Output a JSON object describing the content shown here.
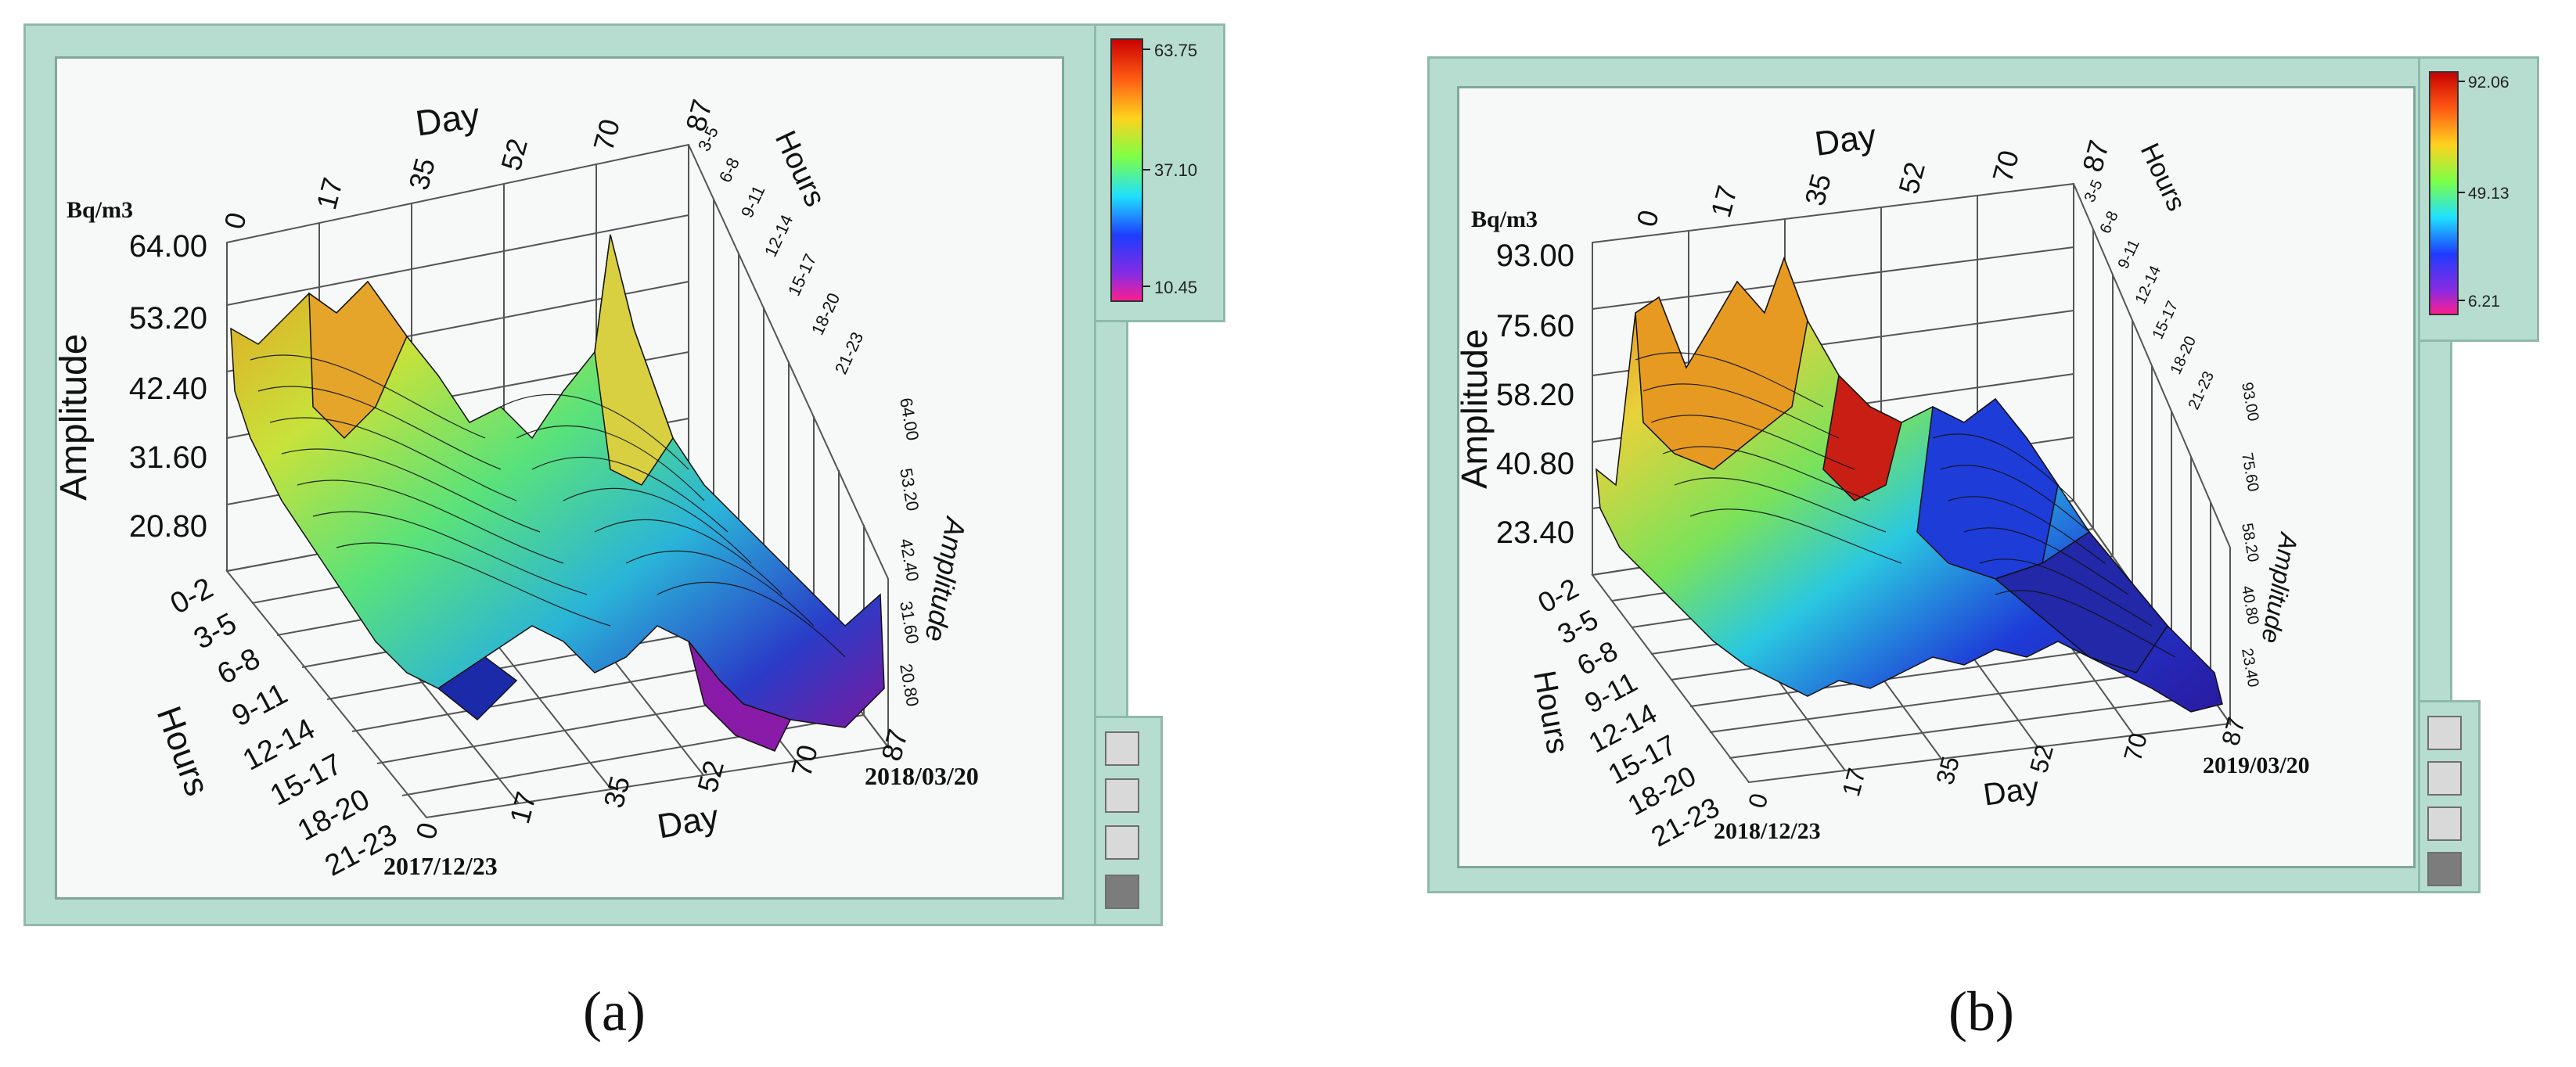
{
  "chart_data": [
    {
      "type": "surface3d",
      "panel_label": "(a)",
      "title": "",
      "unit_label": "Bq/m3",
      "zlabel": "Amplitude",
      "xlabel": "Day",
      "ylabel": "Hours",
      "x_ticks": [
        "0",
        "17",
        "35",
        "52",
        "70",
        "87"
      ],
      "hour_ticks": [
        "0-2",
        "3-5",
        "6-8",
        "9-11",
        "12-14",
        "15-17",
        "18-20",
        "21-23"
      ],
      "z_ticks": [
        "64.00",
        "53.20",
        "42.40",
        "31.60",
        "20.80"
      ],
      "zlim": [
        20.8,
        64.0
      ],
      "start_date": "2017/12/23",
      "end_date": "2018/03/20",
      "colorbar": {
        "max": "63.75",
        "mid": "37.10",
        "min": "10.45"
      },
      "colormap": [
        "#ff1e8c",
        "#8a2be2",
        "#1e3cff",
        "#1fe0ff",
        "#3cff64",
        "#e8ff2a",
        "#ff8c1e",
        "#c80000"
      ]
    },
    {
      "type": "surface3d",
      "panel_label": "(b)",
      "title": "",
      "unit_label": "Bq/m3",
      "zlabel": "Amplitude",
      "xlabel": "Day",
      "ylabel": "Hours",
      "x_ticks": [
        "0",
        "17",
        "35",
        "52",
        "70",
        "87"
      ],
      "hour_ticks": [
        "0-2",
        "3-5",
        "6-8",
        "9-11",
        "12-14",
        "15-17",
        "18-20",
        "21-23"
      ],
      "z_ticks": [
        "93.00",
        "75.60",
        "58.20",
        "40.80",
        "23.40"
      ],
      "zlim": [
        23.4,
        93.0
      ],
      "start_date": "2018/12/23",
      "end_date": "2019/03/20",
      "colorbar": {
        "max": "92.06",
        "mid": "49.13",
        "min": "6.21"
      },
      "colormap": [
        "#ff1e8c",
        "#8a2be2",
        "#1e3cff",
        "#1fe0ff",
        "#3cff64",
        "#e8ff2a",
        "#ff8c1e",
        "#c80000"
      ]
    }
  ]
}
